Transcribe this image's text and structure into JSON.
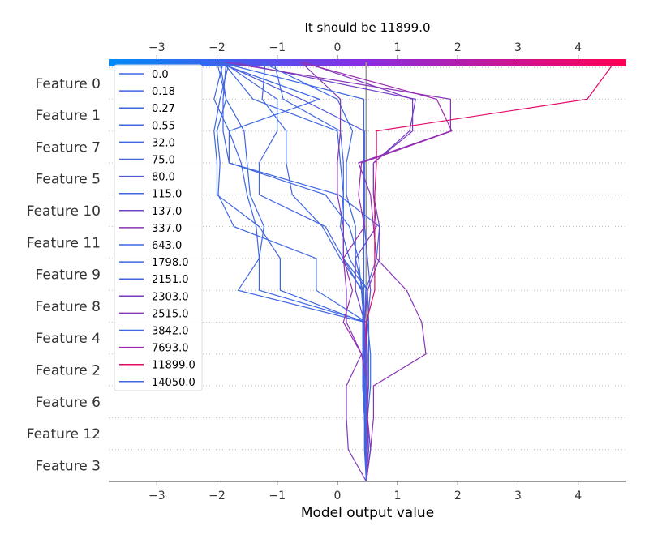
{
  "chart_data": {
    "type": "line",
    "title": "It should be 11899.0",
    "xlabel": "Model output value",
    "xlim": [
      -3.8,
      4.8
    ],
    "x_ticks": [
      -3,
      -2,
      -1,
      0,
      1,
      2,
      3,
      4
    ],
    "x_tick_labels": [
      "−3",
      "−2",
      "−1",
      "0",
      "1",
      "2",
      "3",
      "4"
    ],
    "base_value": 0.48,
    "colorbar": {
      "from": "#008bfb",
      "to": "#ff0052"
    },
    "features": [
      "Feature 3",
      "Feature 12",
      "Feature 6",
      "Feature 2",
      "Feature 4",
      "Feature 8",
      "Feature 9",
      "Feature 11",
      "Feature 10",
      "Feature 5",
      "Feature 7",
      "Feature 1",
      "Feature 0"
    ],
    "legend_position": "upper-left",
    "series": [
      {
        "name": "0.0",
        "color": "#3f67e2",
        "values": [
          0.48,
          0.47,
          0.45,
          0.45,
          0.44,
          0.44,
          -0.95,
          -0.95,
          -1.3,
          -2.0,
          -2.0,
          -2.05,
          -1.95,
          -1.8
        ]
      },
      {
        "name": "0.18",
        "color": "#3f67e2",
        "values": [
          0.48,
          0.5,
          0.5,
          0.5,
          0.5,
          0.45,
          -1.65,
          -1.3,
          -1.35,
          -1.5,
          -1.6,
          -1.8,
          -2.05,
          -1.9
        ]
      },
      {
        "name": "0.27",
        "color": "#3f67e2",
        "values": [
          0.48,
          0.52,
          0.5,
          0.5,
          0.5,
          0.48,
          -0.35,
          -0.35,
          -1.72,
          -1.98,
          -1.95,
          -2.0,
          -1.85,
          -2.0
        ]
      },
      {
        "name": "0.55",
        "color": "#3f67e2",
        "values": [
          0.48,
          0.5,
          0.5,
          0.55,
          0.55,
          0.5,
          -1.3,
          -1.3,
          -1.22,
          -1.45,
          -1.5,
          -1.55,
          -1.85,
          -1.95
        ]
      },
      {
        "name": "32.0",
        "color": "#4066e1",
        "values": [
          0.48,
          0.48,
          0.46,
          0.46,
          0.46,
          0.45,
          0.47,
          0.65,
          0.7,
          0.02,
          -1.8,
          -1.9,
          -1.9,
          -1.85
        ]
      },
      {
        "name": "75.0",
        "color": "#4466e0",
        "values": [
          0.48,
          0.48,
          0.48,
          0.48,
          0.48,
          0.44,
          0.4,
          0.1,
          -0.2,
          -1.3,
          -1.3,
          -1.0,
          -1.0,
          -1.9
        ]
      },
      {
        "name": "80.0",
        "color": "#5058d6",
        "values": [
          0.48,
          0.48,
          0.48,
          0.48,
          0.48,
          0.5,
          0.55,
          0.5,
          0.45,
          0.45,
          0.45,
          0.45,
          -0.6,
          -1.95
        ]
      },
      {
        "name": "115.0",
        "color": "#3f67e2",
        "values": [
          0.48,
          0.48,
          0.48,
          0.52,
          0.52,
          0.52,
          0.5,
          0.2,
          0.05,
          0.1,
          0.05,
          0.0,
          -1.4,
          -1.9
        ]
      },
      {
        "name": "137.0",
        "color": "#7040c4",
        "values": [
          0.48,
          0.55,
          0.5,
          0.5,
          0.5,
          0.45,
          0.3,
          0.3,
          0.65,
          0.6,
          0.6,
          1.2,
          1.3,
          -1.7
        ]
      },
      {
        "name": "337.0",
        "color": "#8a33b7",
        "values": [
          0.48,
          0.55,
          0.6,
          0.6,
          1.47,
          1.4,
          1.15,
          0.65,
          0.6,
          0.55,
          0.35,
          1.88,
          1.88,
          -1.85
        ]
      },
      {
        "name": "643.0",
        "color": "#3f67e2",
        "values": [
          0.48,
          0.47,
          0.45,
          0.44,
          0.42,
          0.42,
          0.42,
          0.05,
          -0.25,
          -0.75,
          -0.85,
          -0.85,
          -1.25,
          -1.2
        ]
      },
      {
        "name": "1798.0",
        "color": "#4066e1",
        "values": [
          0.48,
          0.45,
          0.45,
          0.42,
          0.42,
          0.45,
          0.5,
          0.1,
          0.1,
          0.1,
          0.1,
          0.05,
          -0.9,
          -1.05
        ]
      },
      {
        "name": "2151.0",
        "color": "#3f67e2",
        "values": [
          0.48,
          0.5,
          0.45,
          0.42,
          0.42,
          0.42,
          0.42,
          0.3,
          0.3,
          0.15,
          0.15,
          0.25,
          0.0,
          -1.25
        ]
      },
      {
        "name": "2303.0",
        "color": "#7f3abf",
        "values": [
          0.48,
          0.55,
          0.5,
          0.5,
          0.45,
          0.45,
          0.5,
          0.7,
          0.7,
          0.6,
          0.6,
          1.25,
          1.25,
          -0.55
        ]
      },
      {
        "name": "2515.0",
        "color": "#8438ba",
        "values": [
          0.48,
          0.18,
          0.15,
          0.15,
          0.4,
          0.15,
          0.15,
          0.1,
          0.1,
          0.0,
          0.0,
          0.05,
          0.05,
          -0.6
        ]
      },
      {
        "name": "3842.0",
        "color": "#3f67e2",
        "values": [
          0.48,
          0.46,
          0.46,
          0.46,
          0.44,
          0.44,
          0.44,
          0.44,
          0.44,
          0.44,
          0.44,
          0.44,
          0.44,
          -1.95
        ]
      },
      {
        "name": "7693.0",
        "color": "#9a2bad",
        "values": [
          0.48,
          0.5,
          0.5,
          0.5,
          0.4,
          0.1,
          0.25,
          0.1,
          0.45,
          0.35,
          0.4,
          1.9,
          1.65,
          -0.6
        ]
      },
      {
        "name": "11899.0",
        "color": "#e10a6a",
        "values": [
          0.48,
          0.48,
          0.48,
          0.48,
          0.48,
          0.48,
          0.62,
          0.62,
          0.62,
          0.62,
          0.65,
          0.65,
          4.15,
          4.6
        ]
      },
      {
        "name": "14050.0",
        "color": "#3f67e2",
        "values": [
          0.48,
          0.48,
          0.48,
          0.48,
          0.48,
          0.44,
          0.4,
          0.35,
          0.2,
          -0.2,
          -1.8,
          -1.8,
          -0.3,
          -2.0
        ]
      }
    ]
  }
}
